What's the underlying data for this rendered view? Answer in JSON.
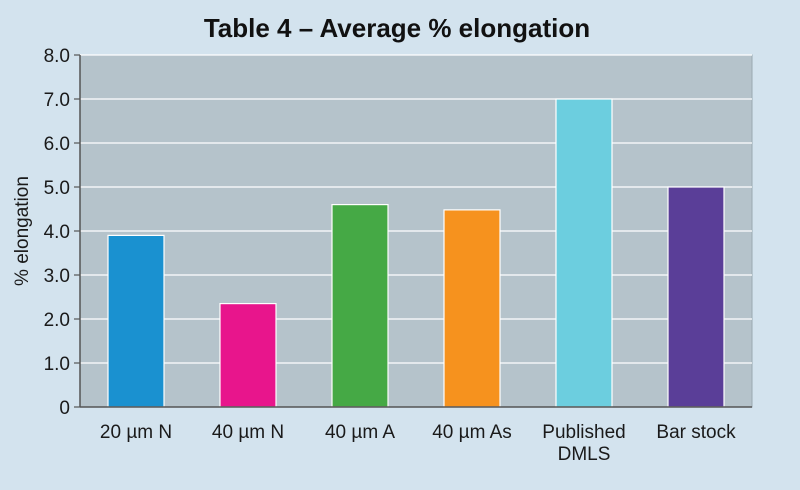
{
  "chart_data": {
    "type": "bar",
    "title": "Table 4 – Average % elongation",
    "ylabel": "% elongation",
    "xlabel": "",
    "ylim": [
      0,
      8
    ],
    "yticks": [
      "0",
      "1.0",
      "2.0",
      "3.0",
      "4.0",
      "5.0",
      "6.0",
      "7.0",
      "8.0"
    ],
    "grid": true,
    "categories": [
      [
        "20 µm N"
      ],
      [
        "40 µm N"
      ],
      [
        "40 µm A"
      ],
      [
        "40 µm As"
      ],
      [
        "Published",
        "DMLS"
      ],
      [
        "Bar stock"
      ]
    ],
    "values": [
      3.9,
      2.35,
      4.6,
      4.48,
      7.0,
      5.0
    ],
    "colors": [
      "#1a91d0",
      "#e8158c",
      "#45a945",
      "#f6921e",
      "#6ccedf",
      "#5a3e98"
    ],
    "plot_background": "#b5c3cb",
    "page_background": "#d3e3ee"
  }
}
